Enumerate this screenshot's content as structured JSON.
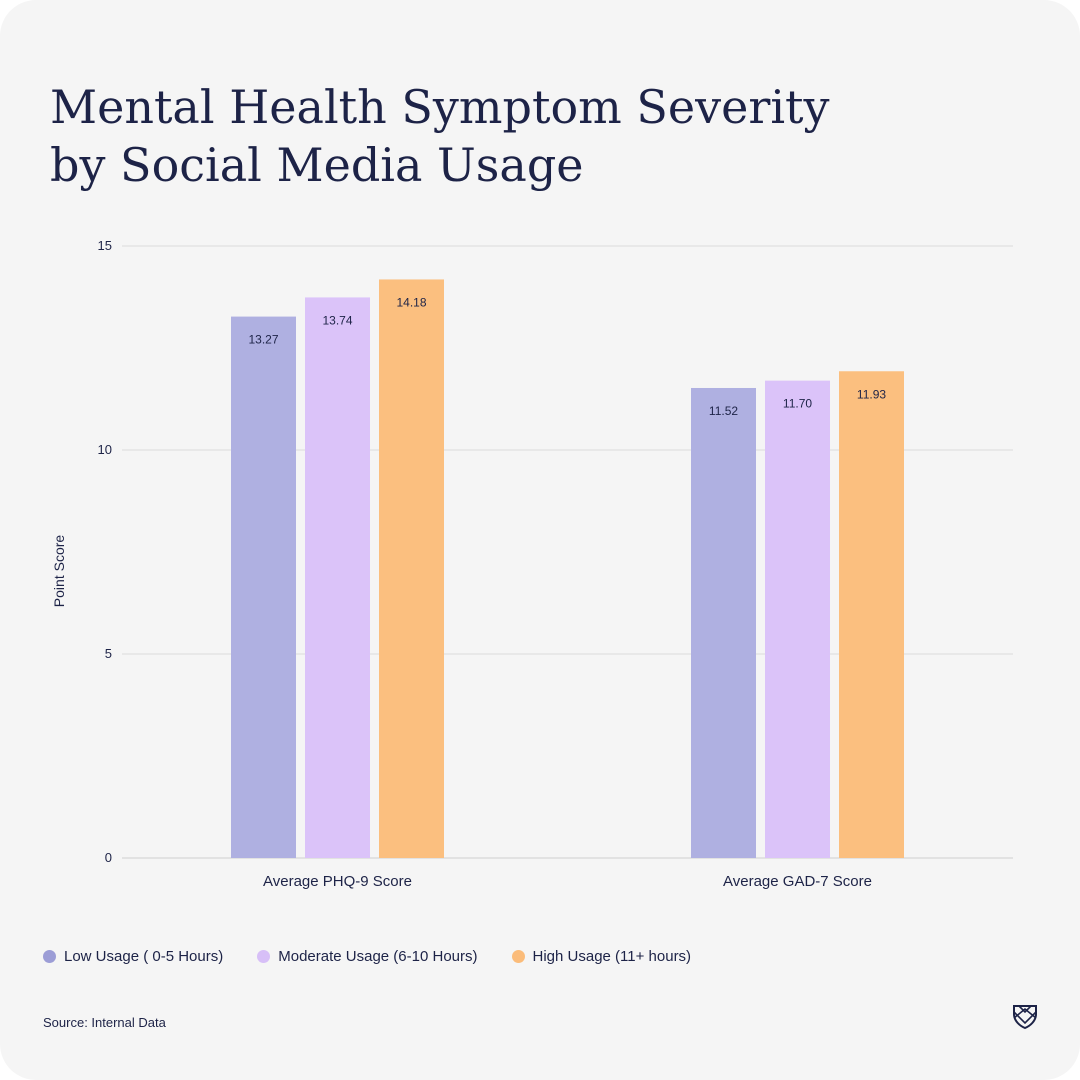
{
  "title_line1": "Mental Health Symptom Severity",
  "title_line2": "by Social Media Usage",
  "source": "Source: Internal Data",
  "colors": {
    "background": "#f5f5f5",
    "text": "#1d2347",
    "grid": "#dcdcdc"
  },
  "chart_data": {
    "type": "bar",
    "categories": [
      "Average PHQ-9 Score",
      "Average GAD-7 Score"
    ],
    "series": [
      {
        "name": "Low Usage ( 0-5 Hours)",
        "values": [
          13.27,
          11.52
        ],
        "labels": [
          "13.27",
          "11.52"
        ],
        "color": "#afb0e1",
        "legend_color": "#9c9dd6"
      },
      {
        "name": "Moderate Usage (6-10 Hours)",
        "values": [
          13.74,
          11.7
        ],
        "labels": [
          "13.74",
          "11.70"
        ],
        "color": "#dbc3f9",
        "legend_color": "#d7bff7"
      },
      {
        "name": "High Usage (11+ hours)",
        "values": [
          14.18,
          11.93
        ],
        "labels": [
          "14.18",
          "11.93"
        ],
        "color": "#fbbf7f",
        "legend_color": "#fbbc7a"
      }
    ],
    "ylabel": "Point Score",
    "xlabel": "",
    "ylim": [
      0,
      15
    ],
    "yticks": [
      "0",
      "5",
      "10",
      "15"
    ],
    "grid": true,
    "legend_position": "bottom-left"
  }
}
